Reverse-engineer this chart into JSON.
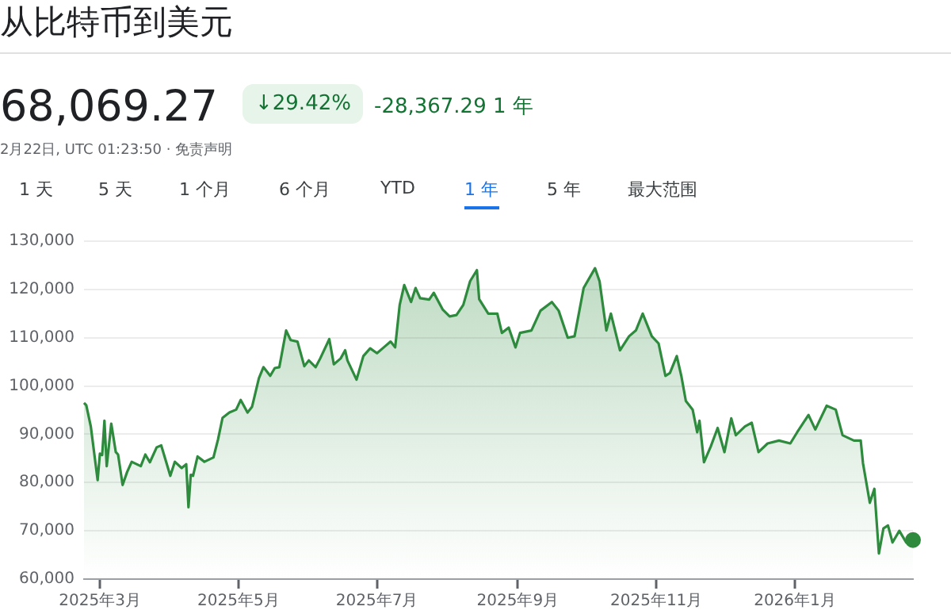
{
  "chart_data": {
    "type": "area",
    "title": "从比特币到美元",
    "annotations": [
      "68,069.27",
      "↓29.42%",
      "-28,367.29 1 年",
      "2月22日, UTC 01:23:50 · 免责声明",
      "1 天",
      "5 天",
      "1 个月",
      "6 个月",
      "YTD",
      "1 年",
      "5 年",
      "最大范围"
    ],
    "x": [
      "2025-02-22",
      "2025-02-23",
      "2025-02-25",
      "2025-02-28",
      "2025-03-01",
      "2025-03-02",
      "2025-03-03",
      "2025-03-04",
      "2025-03-06",
      "2025-03-08",
      "2025-03-09",
      "2025-03-11",
      "2025-03-13",
      "2025-03-15",
      "2025-03-19",
      "2025-03-21",
      "2025-03-23",
      "2025-03-26",
      "2025-03-28",
      "2025-04-01",
      "2025-04-03",
      "2025-04-06",
      "2025-04-08",
      "2025-04-09",
      "2025-04-10",
      "2025-04-11",
      "2025-04-13",
      "2025-04-16",
      "2025-04-20",
      "2025-04-22",
      "2025-04-24",
      "2025-04-27",
      "2025-04-30",
      "2025-05-02",
      "2025-05-05",
      "2025-05-07",
      "2025-05-10",
      "2025-05-12",
      "2025-05-15",
      "2025-05-17",
      "2025-05-19",
      "2025-05-22",
      "2025-05-24",
      "2025-05-27",
      "2025-05-30",
      "2025-06-01",
      "2025-06-04",
      "2025-06-06",
      "2025-06-10",
      "2025-06-12",
      "2025-06-15",
      "2025-06-17",
      "2025-06-18",
      "2025-06-22",
      "2025-06-25",
      "2025-06-28",
      "2025-07-01",
      "2025-07-04",
      "2025-07-07",
      "2025-07-09",
      "2025-07-11",
      "2025-07-13",
      "2025-07-16",
      "2025-07-18",
      "2025-07-20",
      "2025-07-24",
      "2025-07-26",
      "2025-07-30",
      "2025-08-02",
      "2025-08-05",
      "2025-08-08",
      "2025-08-11",
      "2025-08-14",
      "2025-08-15",
      "2025-08-19",
      "2025-08-23",
      "2025-08-25",
      "2025-08-28",
      "2025-08-31",
      "2025-09-02",
      "2025-09-07",
      "2025-09-11",
      "2025-09-16",
      "2025-09-19",
      "2025-09-23",
      "2025-09-26",
      "2025-09-30",
      "2025-10-05",
      "2025-10-07",
      "2025-10-10",
      "2025-10-12",
      "2025-10-16",
      "2025-10-20",
      "2025-10-23",
      "2025-10-26",
      "2025-10-30",
      "2025-11-02",
      "2025-11-05",
      "2025-11-07",
      "2025-11-10",
      "2025-11-12",
      "2025-11-14",
      "2025-11-17",
      "2025-11-19",
      "2025-11-20",
      "2025-11-22",
      "2025-11-25",
      "2025-11-28",
      "2025-12-01",
      "2025-12-04",
      "2025-12-06",
      "2025-12-10",
      "2025-12-13",
      "2025-12-16",
      "2025-12-20",
      "2025-12-25",
      "2025-12-30",
      "2026-01-02",
      "2026-01-07",
      "2026-01-10",
      "2026-01-15",
      "2026-01-19",
      "2026-01-22",
      "2026-01-27",
      "2026-01-30",
      "2026-01-31",
      "2026-02-03",
      "2026-02-05",
      "2026-02-07",
      "2026-02-09",
      "2026-02-11",
      "2026-02-13",
      "2026-02-16",
      "2026-02-19",
      "2026-02-22"
    ],
    "series": [
      {
        "color": "#2e8b3e",
        "values": [
          96500,
          96000,
          91600,
          80500,
          86000,
          85700,
          92800,
          83400,
          92200,
          86300,
          85800,
          79500,
          82200,
          84300,
          83400,
          85800,
          84200,
          87300,
          87700,
          81400,
          84300,
          83000,
          83800,
          74900,
          81600,
          81400,
          85400,
          84300,
          85200,
          88900,
          93400,
          94500,
          95100,
          97100,
          94500,
          95700,
          101600,
          103900,
          102100,
          103700,
          103900,
          111500,
          109500,
          109200,
          104100,
          105300,
          103900,
          105700,
          109700,
          104500,
          105700,
          107400,
          105300,
          101300,
          106200,
          107800,
          106800,
          108000,
          109200,
          108000,
          116800,
          120900,
          117400,
          120300,
          118200,
          117900,
          119300,
          115800,
          114400,
          114700,
          116800,
          121700,
          124000,
          118000,
          115000,
          115000,
          111000,
          112100,
          108000,
          111000,
          111500,
          115600,
          117400,
          115600,
          110000,
          110300,
          120300,
          124400,
          121700,
          111500,
          115000,
          107400,
          110300,
          111500,
          115000,
          110300,
          108800,
          102100,
          102700,
          106200,
          102100,
          96900,
          95100,
          90400,
          92800,
          84200,
          87500,
          91300,
          86300,
          93300,
          89800,
          91600,
          92400,
          86300,
          88100,
          88700,
          88100,
          90400,
          94000,
          91000,
          95900,
          95100,
          89800,
          88700,
          88700,
          84000,
          75800,
          78700,
          65300,
          70500,
          71100,
          67600,
          70000,
          67600,
          68100
        ]
      }
    ],
    "xlim": [
      "2025-02-22",
      "2026-02-22"
    ],
    "xticks": [
      {
        "value": "2025-03-01",
        "label": "2025年3月"
      },
      {
        "value": "2025-05-01",
        "label": "2025年5月"
      },
      {
        "value": "2025-07-01",
        "label": "2025年7月"
      },
      {
        "value": "2025-09-01",
        "label": "2025年9月"
      },
      {
        "value": "2025-11-01",
        "label": "2025年11月"
      },
      {
        "value": "2026-01-01",
        "label": "2026年1月"
      }
    ],
    "ylim": [
      60000,
      130000
    ],
    "yticks": [
      {
        "value": 60000,
        "label": "60,000"
      },
      {
        "value": 70000,
        "label": "70,000"
      },
      {
        "value": 80000,
        "label": "80,000"
      },
      {
        "value": 90000,
        "label": "90,000"
      },
      {
        "value": 100000,
        "label": "100,000"
      },
      {
        "value": 110000,
        "label": "110,000"
      },
      {
        "value": 120000,
        "label": "120,000"
      },
      {
        "value": 130000,
        "label": "130,000"
      }
    ],
    "grid": "y",
    "marker": "none",
    "line_style": "solid"
  }
}
